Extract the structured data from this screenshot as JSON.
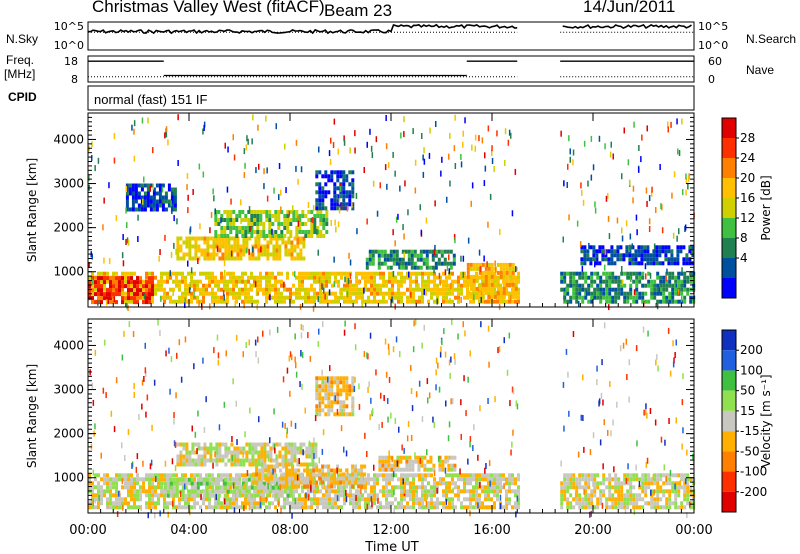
{
  "header": {
    "title": "Christmas Valley West (fitACF)",
    "beam": "Beam 23",
    "date": "14/Jun/2011"
  },
  "noise_panel": {
    "left_label": "N.Sky",
    "right_label": "N.Search",
    "ticks": [
      "10^5",
      "10^0"
    ]
  },
  "freq_panel": {
    "left_label_1": "Freq.",
    "left_label_2": "[MHz]",
    "right_label": "Nave",
    "left_ticks": [
      "18",
      "8"
    ],
    "right_ticks": [
      "60",
      "0"
    ]
  },
  "cpid": {
    "label": "CPID",
    "value": "normal (fast) 151 IF"
  },
  "chart_data": [
    {
      "type": "heatmap",
      "name": "power",
      "ylabel": "Slant Range [km]",
      "xlabel": "Time UT",
      "ylim": [
        200,
        4600
      ],
      "yticks": [
        "1000",
        "2000",
        "3000",
        "4000"
      ],
      "xlim": [
        0,
        24
      ],
      "xticks": [
        "00:00",
        "04:00",
        "08:00",
        "12:00",
        "16:00",
        "20:00",
        "00:00"
      ],
      "data_gap_hours": [
        17,
        18.7
      ],
      "colorbar": {
        "label": "Power [dB]",
        "ticks": [
          "28",
          "24",
          "20",
          "16",
          "12",
          "8",
          "4"
        ],
        "colors": [
          "#e00000",
          "#ff3000",
          "#ff8000",
          "#ffc000",
          "#d0d000",
          "#40c040",
          "#208050",
          "#0050a0",
          "#0000ff"
        ]
      },
      "regions": [
        {
          "t0": 0.0,
          "t1": 17.0,
          "r0": 300,
          "r1": 1000,
          "value": 18
        },
        {
          "t0": 0.0,
          "t1": 2.5,
          "r0": 300,
          "r1": 900,
          "value": 26
        },
        {
          "t0": 3.5,
          "t1": 8.5,
          "r0": 1300,
          "r1": 1800,
          "value": 18
        },
        {
          "t0": 5.0,
          "t1": 9.5,
          "r0": 1800,
          "r1": 2400,
          "value": 14
        },
        {
          "t0": 1.5,
          "t1": 3.5,
          "r0": 2400,
          "r1": 3000,
          "value": 6
        },
        {
          "t0": 9.0,
          "t1": 10.5,
          "r0": 2400,
          "r1": 3300,
          "value": 6
        },
        {
          "t0": 11.0,
          "t1": 14.5,
          "r0": 1100,
          "r1": 1500,
          "value": 10
        },
        {
          "t0": 15.0,
          "t1": 17.0,
          "r0": 400,
          "r1": 1200,
          "value": 20
        },
        {
          "t0": 18.7,
          "t1": 24.0,
          "r0": 300,
          "r1": 1000,
          "value": 10
        },
        {
          "t0": 19.5,
          "t1": 24.0,
          "r0": 1200,
          "r1": 1600,
          "value": 6
        }
      ]
    },
    {
      "type": "heatmap",
      "name": "velocity",
      "ylabel": "Slant Range [km]",
      "xlabel": "Time UT",
      "ylim": [
        200,
        4600
      ],
      "yticks": [
        "1000",
        "2000",
        "3000",
        "4000"
      ],
      "xlim": [
        0,
        24
      ],
      "xticks": [
        "00:00",
        "04:00",
        "08:00",
        "12:00",
        "16:00",
        "20:00",
        "00:00"
      ],
      "data_gap_hours": [
        17,
        18.7
      ],
      "colorbar": {
        "label": "Velocity [m s⁻¹]",
        "ticks": [
          "200",
          "100",
          "50",
          "15",
          "-15",
          "-50",
          "-100",
          "-200"
        ],
        "colors": [
          "#1030c0",
          "#2060e0",
          "#40c040",
          "#90e050",
          "#c8c8c0",
          "#ffb000",
          "#ff8000",
          "#ff3000",
          "#e00000"
        ]
      },
      "regions": [
        {
          "t0": 0.0,
          "t1": 17.0,
          "r0": 300,
          "r1": 1100,
          "value": 0
        },
        {
          "t0": 3.0,
          "t1": 8.0,
          "r0": 600,
          "r1": 1000,
          "value": 40
        },
        {
          "t0": 6.5,
          "t1": 11.0,
          "r0": 800,
          "r1": 1300,
          "value": -30
        },
        {
          "t0": 3.5,
          "t1": 9.0,
          "r0": 1300,
          "r1": 1800,
          "value": 0
        },
        {
          "t0": 11.5,
          "t1": 14.5,
          "r0": 1200,
          "r1": 1500,
          "value": -30
        },
        {
          "t0": 9.0,
          "t1": 10.5,
          "r0": 2400,
          "r1": 3300,
          "value": -30
        },
        {
          "t0": 18.7,
          "t1": 24.0,
          "r0": 300,
          "r1": 1100,
          "value": 0
        }
      ]
    }
  ],
  "noise_series": {
    "search_level": 0.85,
    "sky_level_early": 0.72,
    "sky_level_late": 0.9
  },
  "freq_series": {
    "segments": [
      {
        "t0": 0.0,
        "t1": 3.0,
        "freq": 16
      },
      {
        "t0": 3.0,
        "t1": 15.0,
        "freq": 10.5
      },
      {
        "t0": 15.0,
        "t1": 17.0,
        "freq": 16
      },
      {
        "t0": 18.7,
        "t1": 24.0,
        "freq": 16
      }
    ],
    "nave": 12
  }
}
